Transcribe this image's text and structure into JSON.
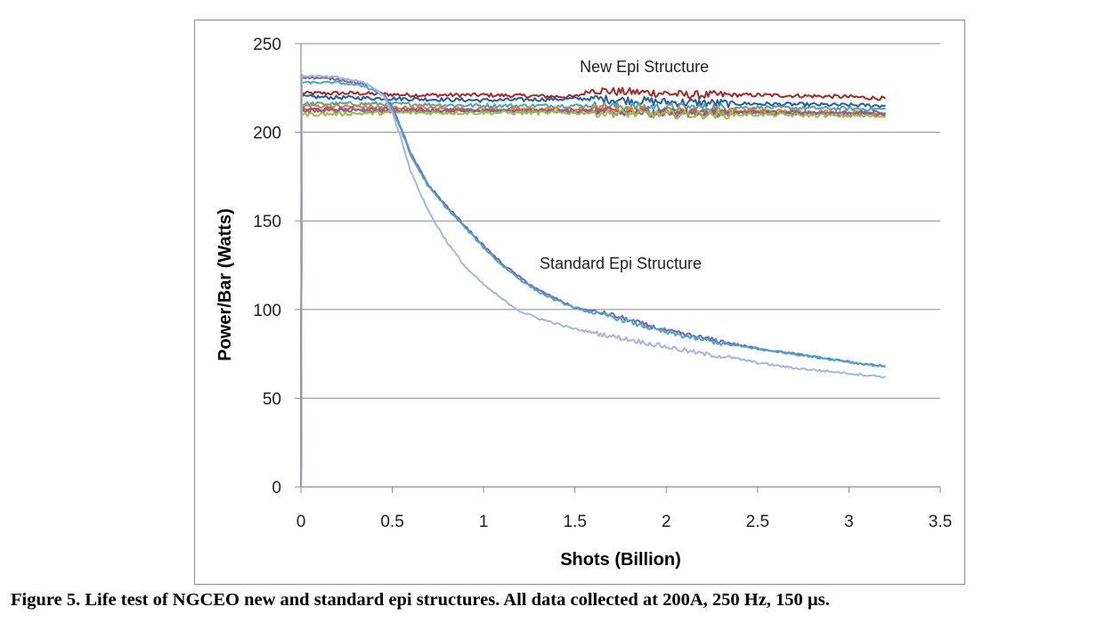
{
  "caption": "Figure 5.  Life test of NGCEO new and standard epi structures.  All data collected at 200A, 250 Hz, 150 µs.",
  "chart_data": {
    "type": "line",
    "xlabel": "Shots (Billion)",
    "ylabel": "Power/Bar (Watts)",
    "xlim": [
      0,
      3.5
    ],
    "ylim": [
      0,
      250
    ],
    "xticks": [
      "0",
      "0.5",
      "1",
      "1.5",
      "2",
      "2.5",
      "3",
      "3.5"
    ],
    "yticks": [
      "0",
      "50",
      "100",
      "150",
      "200",
      "250"
    ],
    "grid": "horizontal",
    "legend": "none",
    "annotations": [
      {
        "text": "New Epi Structure",
        "x": 1.88,
        "y": 234
      },
      {
        "text": "Standard Epi Structure",
        "x": 1.75,
        "y": 123
      }
    ],
    "series": [
      {
        "group": "new",
        "color": "#9b2d2a",
        "values": [
          [
            0,
            0
          ],
          [
            0.005,
            222
          ],
          [
            0.3,
            222
          ],
          [
            0.6,
            221
          ],
          [
            1.0,
            221
          ],
          [
            1.5,
            220
          ],
          [
            1.6,
            224
          ],
          [
            1.7,
            223
          ],
          [
            2.0,
            222
          ],
          [
            2.1,
            221
          ],
          [
            2.5,
            221
          ],
          [
            3.0,
            220
          ],
          [
            3.2,
            219
          ]
        ]
      },
      {
        "group": "new",
        "color": "#2e5c9a",
        "values": [
          [
            0,
            0
          ],
          [
            0.005,
            220
          ],
          [
            0.5,
            219
          ],
          [
            1.0,
            218
          ],
          [
            1.6,
            219
          ],
          [
            2.0,
            217
          ],
          [
            2.5,
            216
          ],
          [
            3.2,
            215
          ]
        ]
      },
      {
        "group": "new",
        "color": "#4aa5b8",
        "values": [
          [
            0,
            0
          ],
          [
            0.005,
            216
          ],
          [
            0.5,
            216
          ],
          [
            1.0,
            215
          ],
          [
            1.6,
            215
          ],
          [
            2.0,
            214
          ],
          [
            2.5,
            214
          ],
          [
            3.2,
            213
          ]
        ]
      },
      {
        "group": "new",
        "color": "#f07d1a",
        "values": [
          [
            0,
            0
          ],
          [
            0.005,
            215
          ],
          [
            0.5,
            214
          ],
          [
            1.0,
            213
          ],
          [
            1.6,
            213
          ],
          [
            2.0,
            212
          ],
          [
            2.5,
            212
          ],
          [
            3.2,
            211
          ]
        ]
      },
      {
        "group": "new",
        "color": "#c0504d",
        "values": [
          [
            0,
            0
          ],
          [
            0.005,
            212
          ],
          [
            0.5,
            212
          ],
          [
            1.0,
            212
          ],
          [
            1.6,
            212
          ],
          [
            2.0,
            211
          ],
          [
            2.5,
            211
          ],
          [
            3.2,
            210
          ]
        ]
      },
      {
        "group": "new",
        "color": "#8064a2",
        "values": [
          [
            0,
            0
          ],
          [
            0.005,
            213
          ],
          [
            0.5,
            213
          ],
          [
            1.0,
            212
          ],
          [
            1.6,
            212
          ],
          [
            2.0,
            211
          ],
          [
            2.5,
            211
          ],
          [
            3.2,
            211
          ]
        ]
      },
      {
        "group": "new",
        "color": "#9bbb59",
        "values": [
          [
            0,
            0
          ],
          [
            0.005,
            210
          ],
          [
            0.5,
            211
          ],
          [
            1.0,
            211
          ],
          [
            1.6,
            211
          ],
          [
            2.0,
            210
          ],
          [
            2.5,
            210
          ],
          [
            3.2,
            209
          ]
        ]
      },
      {
        "group": "standard",
        "color": "#8064a2",
        "values": [
          [
            0,
            0
          ],
          [
            0.005,
            231
          ],
          [
            0.2,
            230
          ],
          [
            0.35,
            227
          ],
          [
            0.45,
            222
          ],
          [
            0.5,
            214
          ],
          [
            0.55,
            202
          ],
          [
            0.6,
            188
          ],
          [
            0.7,
            170
          ],
          [
            0.8,
            158
          ],
          [
            0.9,
            147
          ],
          [
            1.0,
            136
          ],
          [
            1.1,
            126
          ],
          [
            1.2,
            118
          ],
          [
            1.3,
            111
          ],
          [
            1.4,
            106
          ],
          [
            1.5,
            101
          ],
          [
            1.6,
            99
          ],
          [
            1.7,
            97
          ],
          [
            1.8,
            94
          ],
          [
            1.9,
            91
          ],
          [
            2.0,
            88
          ],
          [
            2.1,
            86
          ],
          [
            2.2,
            84
          ],
          [
            2.35,
            81
          ],
          [
            2.5,
            78
          ],
          [
            2.7,
            75
          ],
          [
            2.9,
            72
          ],
          [
            3.1,
            69
          ],
          [
            3.2,
            68
          ]
        ]
      },
      {
        "group": "standard",
        "color": "#4aa5c8",
        "values": [
          [
            0,
            0
          ],
          [
            0.005,
            228
          ],
          [
            0.2,
            228
          ],
          [
            0.35,
            226
          ],
          [
            0.45,
            221
          ],
          [
            0.5,
            213
          ],
          [
            0.55,
            201
          ],
          [
            0.6,
            187
          ],
          [
            0.7,
            169
          ],
          [
            0.8,
            157
          ],
          [
            0.9,
            146
          ],
          [
            1.0,
            135
          ],
          [
            1.1,
            125
          ],
          [
            1.2,
            117
          ],
          [
            1.3,
            110
          ],
          [
            1.4,
            105
          ],
          [
            1.5,
            101
          ],
          [
            1.6,
            98
          ],
          [
            1.7,
            96
          ],
          [
            1.8,
            93
          ],
          [
            1.9,
            90
          ],
          [
            2.0,
            87
          ],
          [
            2.1,
            85
          ],
          [
            2.2,
            83
          ],
          [
            2.35,
            80
          ],
          [
            2.5,
            78
          ],
          [
            2.7,
            75
          ],
          [
            2.9,
            72
          ],
          [
            3.1,
            69
          ],
          [
            3.2,
            68
          ]
        ]
      },
      {
        "group": "standard",
        "color": "#a9b6d6",
        "values": [
          [
            0,
            0
          ],
          [
            0.005,
            232
          ],
          [
            0.2,
            231
          ],
          [
            0.35,
            228
          ],
          [
            0.45,
            221
          ],
          [
            0.5,
            211
          ],
          [
            0.55,
            196
          ],
          [
            0.6,
            178
          ],
          [
            0.7,
            155
          ],
          [
            0.8,
            138
          ],
          [
            0.9,
            124
          ],
          [
            1.0,
            114
          ],
          [
            1.1,
            106
          ],
          [
            1.2,
            99
          ],
          [
            1.3,
            95
          ],
          [
            1.4,
            92
          ],
          [
            1.5,
            89
          ],
          [
            1.6,
            87
          ],
          [
            1.7,
            85
          ],
          [
            1.8,
            83
          ],
          [
            1.9,
            81
          ],
          [
            2.0,
            79
          ],
          [
            2.1,
            77
          ],
          [
            2.2,
            75
          ],
          [
            2.35,
            73
          ],
          [
            2.5,
            70
          ],
          [
            2.7,
            67
          ],
          [
            2.9,
            65
          ],
          [
            3.1,
            63
          ],
          [
            3.2,
            62
          ]
        ]
      }
    ]
  }
}
